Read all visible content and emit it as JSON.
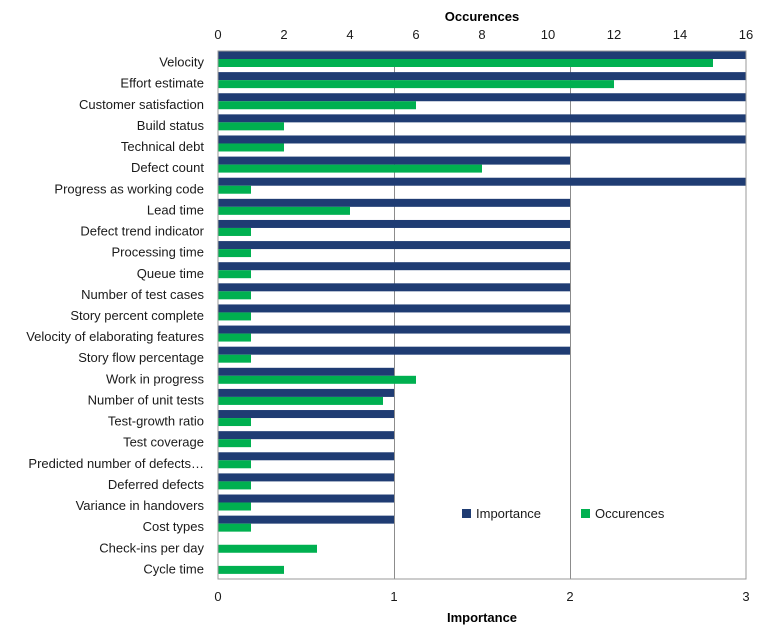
{
  "chart_data": {
    "type": "bar",
    "orientation": "horizontal",
    "categories": [
      "Velocity",
      "Effort estimate",
      "Customer satisfaction",
      "Build status",
      "Technical debt",
      "Defect count",
      "Progress as working code",
      "Lead time",
      "Defect trend indicator",
      "Processing time",
      "Queue time",
      "Number of test cases",
      "Story percent complete",
      "Velocity of elaborating features",
      "Story flow percentage",
      "Work in progress",
      "Number of unit tests",
      "Test-growth ratio",
      "Test coverage",
      "Predicted number  of defects…",
      "Deferred defects",
      "Variance in handovers",
      "Cost types",
      "Check-ins per day",
      "Cycle time"
    ],
    "series": [
      {
        "name": "Importance",
        "axis": "bottom",
        "color": "#1f3c73",
        "values": [
          3,
          3,
          3,
          3,
          3,
          2,
          3,
          2,
          2,
          2,
          2,
          2,
          2,
          2,
          2,
          1,
          1,
          1,
          1,
          1,
          1,
          1,
          1,
          0,
          0
        ]
      },
      {
        "name": "Occurences",
        "axis": "top",
        "color": "#00b050",
        "values": [
          15,
          12,
          6,
          2,
          2,
          8,
          1,
          4,
          1,
          1,
          1,
          1,
          1,
          1,
          1,
          6,
          5,
          1,
          1,
          1,
          1,
          1,
          1,
          3,
          2
        ]
      }
    ],
    "x_bottom": {
      "label": "Importance",
      "range": [
        0,
        3
      ],
      "ticks": [
        "0",
        "1",
        "2",
        "3"
      ]
    },
    "x_top": {
      "label": "Occurences",
      "range": [
        0,
        16
      ],
      "ticks": [
        "0",
        "2",
        "4",
        "6",
        "8",
        "10",
        "12",
        "14",
        "16"
      ]
    },
    "grid": "vertical-major-bottom",
    "legend_placement": "bottom-right-inside"
  }
}
